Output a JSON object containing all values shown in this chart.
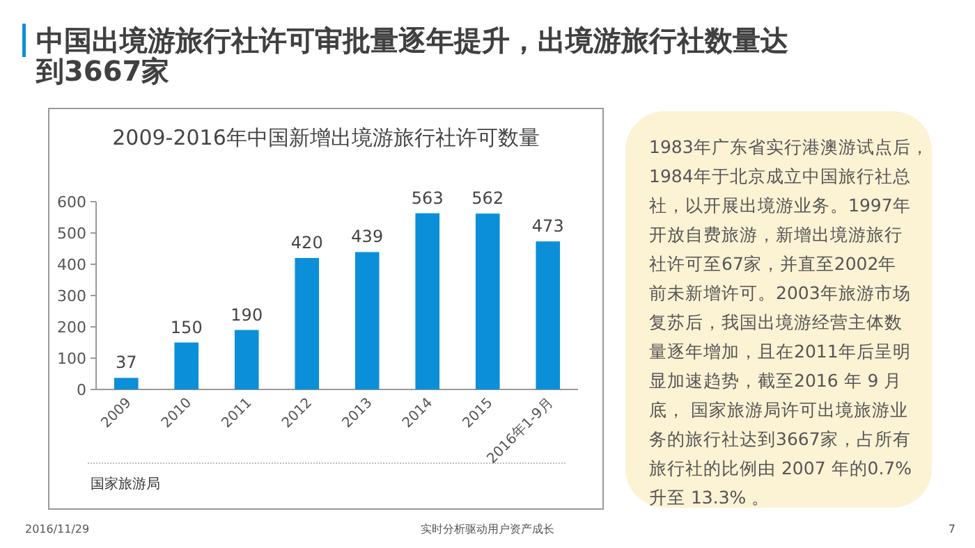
{
  "chart_data": {
    "type": "bar",
    "title": "中国出境游旅行社许可审批量逐年提升，出境游旅行社数量达到3667家",
    "subtitle": "2009-2016年中国新增出境游旅行社许可数量",
    "categories": [
      "2009",
      "2010",
      "2011",
      "2012",
      "2013",
      "2014",
      "2015",
      "2016年1-9月"
    ],
    "values": [
      37,
      150,
      190,
      420,
      439,
      563,
      562,
      473
    ],
    "color": "#0b8fd8",
    "ylim": [
      0,
      600
    ],
    "yticks": [
      0,
      100,
      200,
      300,
      400,
      500,
      600
    ],
    "grid": false,
    "data_labels": true,
    "annotations": [
      "1983年广东省实行港澳游试点后，1984年于北京成立中国旅行社总社，以开展出境游业务。1997年开放自费旅游，新增出境游旅行社许可至67家，并直至2002年前未新增许可。2003年旅游市场复苏后，我国出境游经营主体数量逐年增加，且在2011年后呈明显加速趋势，截至2016 年 9 月底， 国家旅游局许可出境旅游业务的旅行社达到3667家，占所有旅行社的比例由 2007 年的0.7%升至 13.3% 。",
      "国家旅游局",
      "2016/11/29",
      "实时分析驱动用户资产成长",
      "7"
    ]
  }
}
